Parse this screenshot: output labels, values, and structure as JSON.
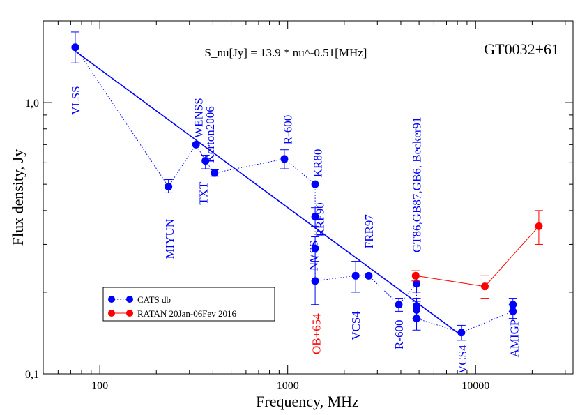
{
  "chart_data": {
    "type": "scatter",
    "title": "GT0032+61",
    "title_color": "#ff0000",
    "fit_label": "S_nu[Jy] = 13.9 * nu^-0.51[MHz]",
    "xlabel": "Frequency, MHz",
    "ylabel": "Flux density, Jy",
    "x_scale": "log",
    "y_scale": "log",
    "xlim": [
      50,
      33000
    ],
    "ylim": [
      0.1,
      2.0
    ],
    "x_ticks": [
      {
        "value": 100,
        "label": "100"
      },
      {
        "value": 1000,
        "label": "1000"
      },
      {
        "value": 10000,
        "label": "10000"
      }
    ],
    "y_ticks": [
      {
        "value": 0.1,
        "label": "0,1"
      },
      {
        "value": 1.0,
        "label": "1,0"
      }
    ],
    "colors": {
      "cats": "#0000ff",
      "ratan": "#ff0000",
      "fit": "#0000ff",
      "axis": "#000000"
    },
    "fit": {
      "coef": 13.9,
      "index": -0.51,
      "x_range": [
        74,
        8400
      ]
    },
    "series": [
      {
        "name": "CATS db",
        "color": "#0000ff",
        "line_style": "dotted",
        "points": [
          {
            "x": 74,
            "y": 1.6,
            "err": [
              1.4,
              1.82
            ]
          },
          {
            "x": 232,
            "y": 0.49,
            "err": [
              0.465,
              0.52
            ]
          },
          {
            "x": 325,
            "y": 0.7
          },
          {
            "x": 365,
            "y": 0.61,
            "err": [
              0.57,
              0.64
            ]
          },
          {
            "x": 408,
            "y": 0.55,
            "err": [
              0.535,
              0.565
            ]
          },
          {
            "x": 960,
            "y": 0.62,
            "err": [
              0.57,
              0.67
            ]
          },
          {
            "x": 1400,
            "y": 0.5
          },
          {
            "x": 1400,
            "y": 0.38,
            "err": [
              0.35,
              0.41
            ]
          },
          {
            "x": 1400,
            "y": 0.29,
            "err": [
              0.26,
              0.32
            ]
          },
          {
            "x": 1400,
            "y": 0.22,
            "err": [
              0.18,
              0.27
            ]
          },
          {
            "x": 2300,
            "y": 0.23,
            "err": [
              0.2,
              0.26
            ]
          },
          {
            "x": 2700,
            "y": 0.23
          },
          {
            "x": 3900,
            "y": 0.18,
            "err": [
              0.17,
              0.19
            ]
          },
          {
            "x": 4850,
            "y": 0.215,
            "err": [
              0.2,
              0.23
            ]
          },
          {
            "x": 4850,
            "y": 0.178,
            "err": [
              0.165,
              0.19
            ]
          },
          {
            "x": 4850,
            "y": 0.172,
            "err": [
              0.16,
              0.185
            ]
          },
          {
            "x": 4850,
            "y": 0.16,
            "err": [
              0.145,
              0.175
            ]
          },
          {
            "x": 8400,
            "y": 0.142,
            "err": [
              0.133,
              0.151
            ]
          },
          {
            "x": 15800,
            "y": 0.17,
            "err": [
              0.16,
              0.18
            ]
          },
          {
            "x": 15800,
            "y": 0.18,
            "err": [
              0.17,
              0.19
            ]
          }
        ]
      },
      {
        "name": "RATAN  20Jan-06Fev 2016",
        "color": "#ff0000",
        "line_style": "solid",
        "points": [
          {
            "x": 4800,
            "y": 0.23,
            "err": [
              0.22,
              0.24
            ]
          },
          {
            "x": 11200,
            "y": 0.21,
            "err": [
              0.19,
              0.23
            ]
          },
          {
            "x": 21700,
            "y": 0.35,
            "err": [
              0.3,
              0.4
            ]
          }
        ]
      }
    ],
    "annotations": [
      {
        "text": "VLSS",
        "color": "#0000ff",
        "x": 74,
        "y": 0.9
      },
      {
        "text": "MIYUN",
        "color": "#0000ff",
        "x": 235,
        "y": 0.265
      },
      {
        "text": "WENSS",
        "color": "#0000ff",
        "x": 335,
        "y": 0.74
      },
      {
        "text": "Kerton2006",
        "color": "#0000ff",
        "x": 385,
        "y": 0.6
      },
      {
        "text": "TXT",
        "color": "#0000ff",
        "x": 355,
        "y": 0.42
      },
      {
        "text": "R-600",
        "color": "#0000ff",
        "x": 1000,
        "y": 0.7
      },
      {
        "text": "KR80",
        "color": "#0000ff",
        "x": 1440,
        "y": 0.53
      },
      {
        "text": "RRF90",
        "color": "#0000ff",
        "x": 1480,
        "y": 0.32
      },
      {
        "text": "NVSS",
        "color": "#0000ff",
        "x": 1370,
        "y": 0.24
      },
      {
        "text": "OB+654",
        "color": "#ff0000",
        "x": 1420,
        "y": 0.118
      },
      {
        "text": "VCS4",
        "color": "#0000ff",
        "x": 2300,
        "y": 0.133
      },
      {
        "text": "FRR97",
        "color": "#0000ff",
        "x": 2700,
        "y": 0.29
      },
      {
        "text": "R-600",
        "color": "#0000ff",
        "x": 3900,
        "y": 0.123
      },
      {
        "text": "GT86,GB87,GB6, Becker91",
        "color": "#0000ff",
        "x": 4850,
        "y": 0.28
      },
      {
        "text": "VCS4",
        "color": "#0000ff",
        "x": 8500,
        "y": 0.1
      },
      {
        "text": "AMIGP",
        "color": "#0000ff",
        "x": 16000,
        "y": 0.115
      }
    ],
    "legend": {
      "position": "lower-left",
      "entries": [
        {
          "label": "CATS db",
          "color": "#0000ff",
          "line_style": "dotted"
        },
        {
          "label": "RATAN  20Jan-06Fev 2016",
          "color": "#ff0000",
          "line_style": "solid"
        }
      ]
    }
  }
}
